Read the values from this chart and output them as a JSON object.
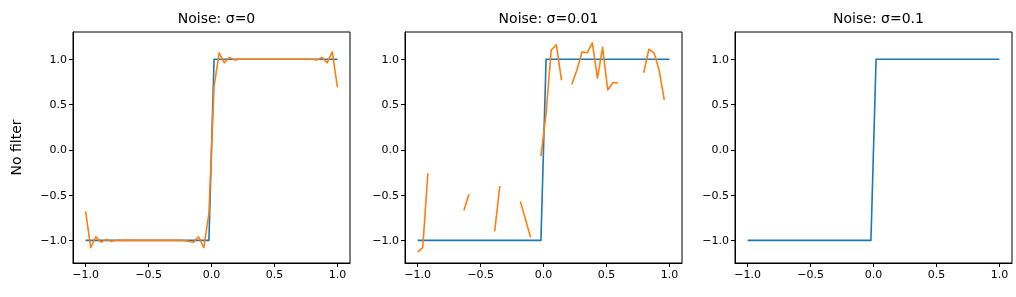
{
  "chart_data": [
    {
      "type": "line",
      "title": "Noise: σ=0",
      "ylabel": "No filter",
      "xlim": [
        -1.1,
        1.1
      ],
      "ylim": [
        -1.25,
        1.3
      ],
      "xticks": [
        {
          "value": -1,
          "label": "−1.0"
        },
        {
          "value": -0.5,
          "label": "−0.5"
        },
        {
          "value": 0,
          "label": "0.0"
        },
        {
          "value": 0.5,
          "label": "0.5"
        },
        {
          "value": 1,
          "label": "1.0"
        }
      ],
      "yticks": [
        {
          "value": -1,
          "label": "−1.0"
        },
        {
          "value": -0.5,
          "label": "−0.5"
        },
        {
          "value": 0,
          "label": "0.0"
        },
        {
          "value": 0.5,
          "label": "0.5"
        },
        {
          "value": 1,
          "label": "1.0"
        }
      ],
      "grid": false,
      "marker": "none",
      "series": [
        {
          "color": "#1f77b4",
          "x": [
            -1,
            -0.0204,
            0.0204,
            1
          ],
          "values": [
            -1,
            -1,
            1,
            1
          ]
        },
        {
          "color": "#ff7f0e",
          "x": [
            -1,
            -0.9592,
            -0.9184,
            -0.8776,
            -0.8367,
            -0.7959,
            -0.7551,
            -0.7143,
            -0.6735,
            -0.6327,
            -0.5918,
            -0.551,
            -0.5102,
            -0.4694,
            -0.4286,
            -0.3878,
            -0.3469,
            -0.3061,
            -0.2653,
            -0.2245,
            -0.1837,
            -0.1429,
            -0.102,
            -0.0612,
            -0.0204,
            0.0204,
            0.0612,
            0.102,
            0.1429,
            0.1837,
            0.2245,
            0.2653,
            0.3061,
            0.3469,
            0.3878,
            0.4286,
            0.4694,
            0.5102,
            0.551,
            0.5918,
            0.6327,
            0.6735,
            0.7143,
            0.7551,
            0.7959,
            0.8367,
            0.8776,
            0.9184,
            0.9592,
            1
          ],
          "values": [
            -0.68,
            -1.08,
            -0.96,
            -1.02,
            -0.99,
            -1.01,
            -1,
            -1,
            -1,
            -1,
            -1,
            -1,
            -1,
            -1,
            -1,
            -1,
            -1,
            -1,
            -1,
            -1,
            -1.01,
            -1.02,
            -0.96,
            -1.08,
            -0.7,
            0.7,
            1.07,
            0.96,
            1.02,
            0.99,
            1,
            1,
            1,
            1,
            1,
            1,
            1,
            1,
            1,
            1,
            1,
            1,
            1,
            1,
            1,
            0.99,
            1.02,
            0.96,
            1.08,
            0.69
          ]
        }
      ]
    },
    {
      "type": "line",
      "title": "Noise: σ=0.01",
      "xlim": [
        -1.1,
        1.1
      ],
      "ylim": [
        -1.25,
        1.3
      ],
      "xticks": [
        {
          "value": -1,
          "label": "−1.0"
        },
        {
          "value": -0.5,
          "label": "−0.5"
        },
        {
          "value": 0,
          "label": "0.0"
        },
        {
          "value": 0.5,
          "label": "0.5"
        },
        {
          "value": 1,
          "label": "1.0"
        }
      ],
      "yticks": [
        {
          "value": -1,
          "label": "−1.0"
        },
        {
          "value": -0.5,
          "label": "−0.5"
        },
        {
          "value": 0,
          "label": "0.0"
        },
        {
          "value": 0.5,
          "label": "0.5"
        },
        {
          "value": 1,
          "label": "1.0"
        }
      ],
      "grid": false,
      "marker": "none",
      "series": [
        {
          "color": "#1f77b4",
          "x": [
            -1,
            -0.0204,
            0.0204,
            1
          ],
          "values": [
            -1,
            -1,
            1,
            1
          ]
        },
        {
          "color": "#ff7f0e",
          "x": [
            -1,
            -0.9592,
            -0.9184,
            -0.8776,
            -0.8367,
            -0.7959,
            -0.7551,
            -0.7143,
            -0.6735,
            -0.6327,
            -0.5918,
            -0.551,
            -0.5102,
            -0.4694,
            -0.4286,
            -0.3878,
            -0.3469,
            -0.3061,
            -0.2653,
            -0.2245,
            -0.1837,
            -0.1429,
            -0.102,
            -0.0612,
            -0.0204,
            0.0204,
            0.0612,
            0.102,
            0.1429,
            0.1837,
            0.2245,
            0.2653,
            0.3061,
            0.3469,
            0.3878,
            0.4286,
            0.4694,
            0.5102,
            0.551,
            0.5918,
            0.6327,
            0.6735,
            0.7143,
            0.7551,
            0.7959,
            0.8367,
            0.8776,
            0.9184,
            0.9592
          ],
          "values": [
            -1.13,
            -1.08,
            -0.26,
            null,
            null,
            null,
            null,
            null,
            null,
            -0.67,
            -0.49,
            null,
            null,
            null,
            null,
            -0.9,
            -0.4,
            null,
            null,
            null,
            -0.57,
            -0.77,
            -0.97,
            null,
            -0.07,
            0.4,
            1.1,
            1.16,
            0.77,
            null,
            0.72,
            0.88,
            1.08,
            1.07,
            1.18,
            0.79,
            1.13,
            0.66,
            0.74,
            0.74,
            null,
            null,
            null,
            null,
            0.85,
            1.11,
            1.07,
            0.88,
            0.55
          ]
        }
      ]
    },
    {
      "type": "line",
      "title": "Noise: σ=0.1",
      "xlim": [
        -1.1,
        1.1
      ],
      "ylim": [
        -1.25,
        1.3
      ],
      "xticks": [
        {
          "value": -1,
          "label": "−1.0"
        },
        {
          "value": -0.5,
          "label": "−0.5"
        },
        {
          "value": 0,
          "label": "0.0"
        },
        {
          "value": 0.5,
          "label": "0.5"
        },
        {
          "value": 1,
          "label": "1.0"
        }
      ],
      "yticks": [
        {
          "value": -1,
          "label": "−1.0"
        },
        {
          "value": -0.5,
          "label": "−0.5"
        },
        {
          "value": 0,
          "label": "0.0"
        },
        {
          "value": 0.5,
          "label": "0.5"
        },
        {
          "value": 1,
          "label": "1.0"
        }
      ],
      "grid": false,
      "marker": "none",
      "series": [
        {
          "color": "#1f77b4",
          "x": [
            -1,
            -0.0204,
            0.0204,
            1
          ],
          "values": [
            -1,
            -1,
            1,
            1
          ]
        }
      ]
    }
  ]
}
